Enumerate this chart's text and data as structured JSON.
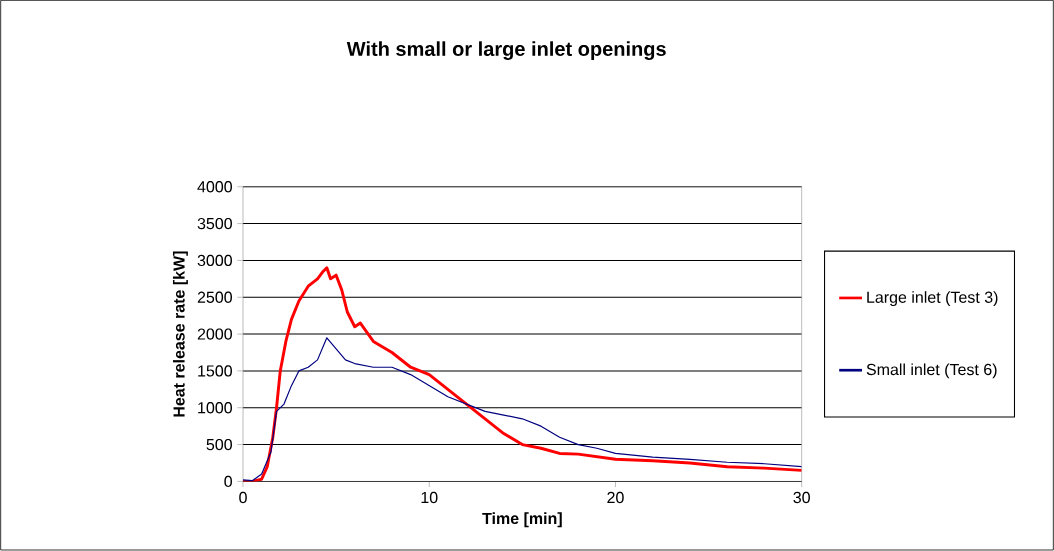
{
  "chart_data": {
    "type": "line",
    "title": "With small or large inlet openings",
    "xlabel": "Time [min]",
    "ylabel": "Heat release rate [kW]",
    "xlim": [
      0,
      30
    ],
    "xticks": [
      0,
      10,
      20,
      30
    ],
    "ylim": [
      0,
      4000
    ],
    "yticks": [
      0,
      500,
      1000,
      1500,
      2000,
      2500,
      3000,
      3500,
      4000
    ],
    "grid": "y",
    "legend": "right",
    "marker": "none",
    "series": [
      {
        "name": "Large inlet (Test 3)",
        "color": "#ff0000",
        "x": [
          0,
          0.5,
          1,
          1.3,
          1.6,
          1.8,
          2,
          2.3,
          2.6,
          3,
          3.5,
          4,
          4.3,
          4.5,
          4.7,
          5,
          5.3,
          5.6,
          6,
          6.3,
          7,
          8,
          9,
          10,
          11,
          12,
          13,
          14,
          15,
          16,
          17,
          18,
          20,
          22,
          24,
          26,
          28,
          30
        ],
        "values": [
          0,
          0,
          30,
          200,
          600,
          1000,
          1500,
          1900,
          2200,
          2450,
          2650,
          2750,
          2850,
          2900,
          2750,
          2800,
          2600,
          2300,
          2100,
          2150,
          1900,
          1750,
          1550,
          1450,
          1250,
          1050,
          850,
          650,
          500,
          450,
          380,
          370,
          300,
          280,
          250,
          200,
          180,
          150
        ]
      },
      {
        "name": "Small inlet (Test 6)",
        "color": "#000080",
        "x": [
          0,
          0.5,
          1,
          1.5,
          1.8,
          2.2,
          2.6,
          3,
          3.5,
          4,
          4.5,
          5,
          5.5,
          6,
          7,
          8,
          9,
          10,
          11,
          12,
          13,
          14,
          15,
          16,
          17,
          18,
          19,
          20,
          22,
          24,
          26,
          28,
          30
        ],
        "values": [
          20,
          10,
          100,
          400,
          950,
          1050,
          1300,
          1500,
          1550,
          1650,
          1950,
          1800,
          1650,
          1600,
          1550,
          1550,
          1450,
          1300,
          1150,
          1050,
          950,
          900,
          850,
          750,
          600,
          500,
          450,
          380,
          330,
          300,
          260,
          240,
          200
        ]
      }
    ]
  }
}
